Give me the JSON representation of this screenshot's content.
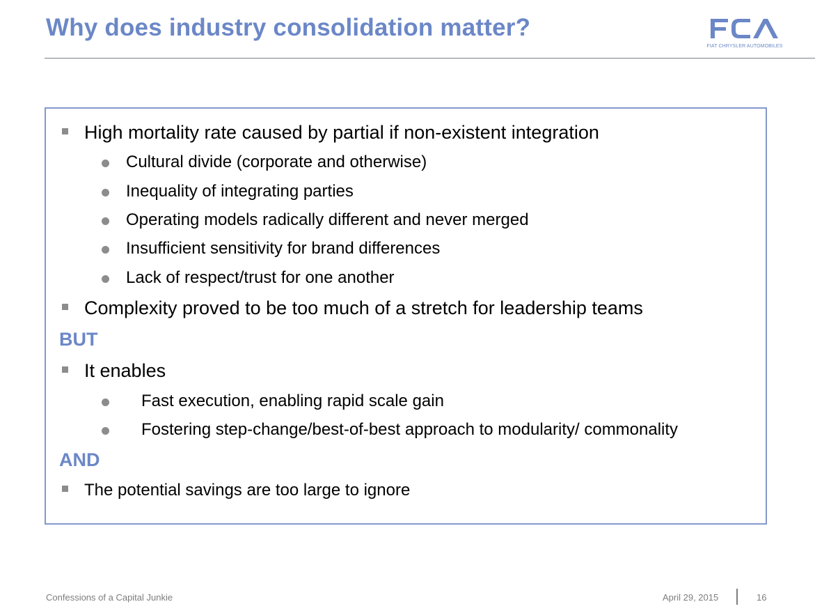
{
  "header": {
    "title": "Why does industry consolidation matter?",
    "logo": {
      "letters": "FCA",
      "subtitle": "FIAT CHRYSLER AUTOMOBILES"
    }
  },
  "content": {
    "b1": "High mortality rate caused by partial if non-existent integration",
    "b1_sub": [
      "Cultural divide (corporate and otherwise)",
      "Inequality of integrating parties",
      "Operating models radically different and never merged",
      "Insufficient sensitivity for brand differences",
      "Lack of respect/trust for one another"
    ],
    "b2": "Complexity proved to be too much of a stretch for leadership teams",
    "conj1": "BUT",
    "b3": "It enables",
    "b3_sub": [
      "Fast execution, enabling rapid scale gain",
      "Fostering step-change/best-of-best approach to modularity/ commonality"
    ],
    "conj2": "AND",
    "b4": "The potential savings are too large to ignore"
  },
  "footer": {
    "source": "Confessions of a Capital Junkie",
    "date": "April 29, 2015",
    "page": "16"
  },
  "colors": {
    "accent": "#6b87c7",
    "box_border": "#8498cd",
    "bullet": "#8c8c8c",
    "footer_text": "#7d7d7d"
  }
}
